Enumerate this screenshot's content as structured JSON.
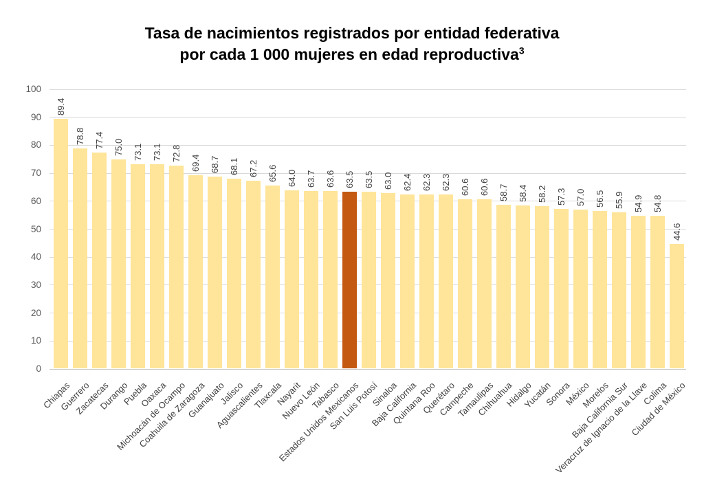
{
  "chart_data": {
    "type": "bar",
    "title_line1": "Tasa de nacimientos registrados por entidad federativa",
    "title_line2": "por cada 1 000 mujeres en edad reproductiva",
    "title_superscript": "3",
    "categories": [
      "Chiapas",
      "Guerrero",
      "Zacatecas",
      "Durango",
      "Puebla",
      "Oaxaca",
      "Michoacán de Ocampo",
      "Coahuila de Zaragoza",
      "Guanajuato",
      "Jalisco",
      "Aguascalientes",
      "Tlaxcala",
      "Nayarit",
      "Nuevo León",
      "Tabasco",
      "Estados Unidos Mexicanos",
      "San Luis Potosí",
      "Sinaloa",
      "Baja California",
      "Quintana Roo",
      "Querétaro",
      "Campeche",
      "Tamaulipas",
      "Chihuahua",
      "Hidalgo",
      "Yucatán",
      "Sonora",
      "México",
      "Morelos",
      "Baja California Sur",
      "Veracruz de Ignacio de la Llave",
      "Colima",
      "Ciudad de México"
    ],
    "values": [
      89.4,
      78.8,
      77.4,
      75.0,
      73.1,
      73.1,
      72.8,
      69.4,
      68.7,
      68.1,
      67.2,
      65.6,
      64.0,
      63.7,
      63.6,
      63.5,
      63.5,
      63.0,
      62.4,
      62.3,
      62.3,
      60.6,
      60.6,
      58.7,
      58.4,
      58.2,
      57.3,
      57.0,
      56.5,
      55.9,
      54.9,
      54.8,
      44.6
    ],
    "value_label_decimals": 1,
    "highlight_category": "Estados Unidos Mexicanos",
    "highlight_index": 15,
    "xlabel": "",
    "ylabel": "",
    "ylim": [
      0,
      100
    ],
    "yticks": [
      0,
      10,
      20,
      30,
      40,
      50,
      60,
      70,
      80,
      90,
      100
    ],
    "grid": "horizontal",
    "legend": "none",
    "value_label_rotation_deg": 90,
    "category_label_rotation_deg": 45,
    "colors": {
      "bar": "#FFE599",
      "highlight_bar": "#C45911",
      "gridline": "#D9D9D9",
      "axis_line": "#C9C9C9",
      "tick_text": "#595959",
      "value_text": "#404040",
      "category_text": "#404040",
      "title_text": "#000000",
      "background": "#FFFFFF"
    }
  }
}
